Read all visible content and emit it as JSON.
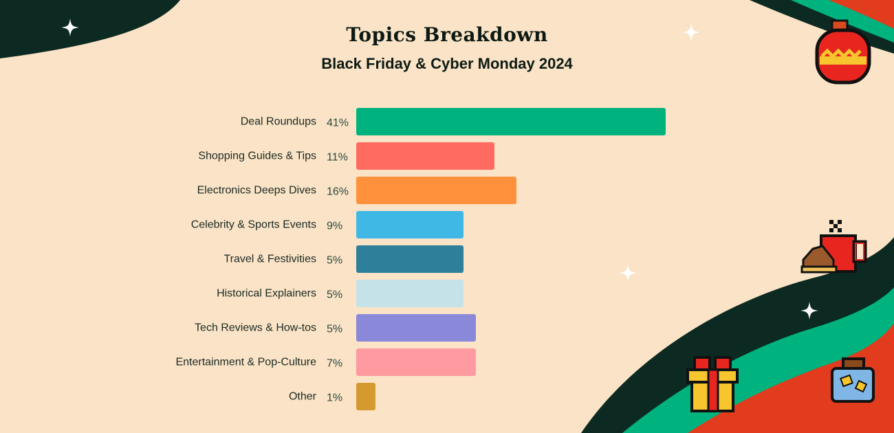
{
  "title": "Topics Breakdown",
  "subtitle": "Black Friday & Cyber Monday 2024",
  "colors": {
    "background": "#fae3c6",
    "dark_green": "#0c2a22",
    "green": "#00b37e",
    "red": "#e03c1d"
  },
  "decorations": [
    "sparkle-icon",
    "ornament-icon",
    "coffee-mug-icon",
    "gift-icon",
    "jar-icon"
  ],
  "chart_data": {
    "type": "bar",
    "orientation": "horizontal",
    "title": "Topics Breakdown",
    "subtitle": "Black Friday & Cyber Monday 2024",
    "categories": [
      "Deal Roundups",
      "Shopping Guides & Tips",
      "Electronics Deeps Dives",
      "Celebrity & Sports Events",
      "Travel & Festivities",
      "Historical Explainers",
      "Tech Reviews & How-tos",
      "Entertainment & Pop-Culture",
      "Other"
    ],
    "values": [
      41,
      11,
      16,
      9,
      5,
      5,
      5,
      7,
      1
    ],
    "value_labels": [
      "41%",
      "11%",
      "16%",
      "9%",
      "5%",
      "5%",
      "5%",
      "7%",
      "1%"
    ],
    "bar_colors": [
      "#00b37e",
      "#ff6b61",
      "#ff913c",
      "#40b8e6",
      "#2e7f9a",
      "#c4e2e8",
      "#8a88d8",
      "#ff9aa0",
      "#d49a30"
    ],
    "unit": "%",
    "grid": false,
    "legend": "none"
  }
}
